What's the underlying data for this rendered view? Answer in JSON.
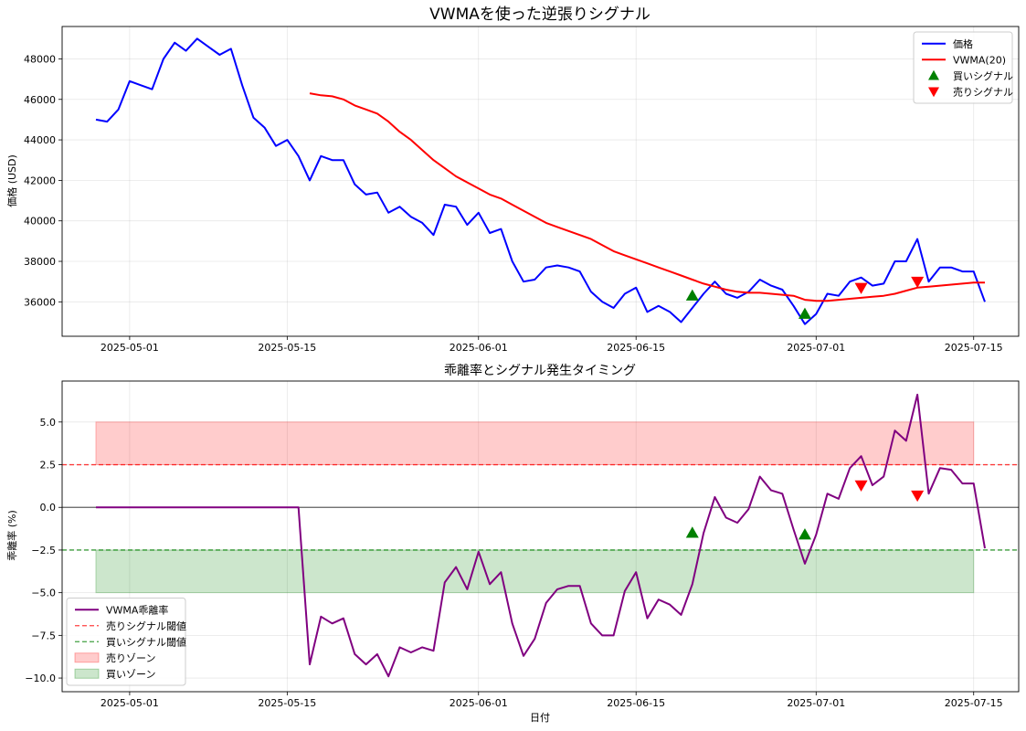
{
  "chart_data": [
    {
      "type": "line",
      "title": "VWMAを使った逆張りシグナル",
      "xlabel": "",
      "ylabel": "価格 (USD)",
      "x_start": "2025-04-28",
      "x_end": "2025-07-15",
      "xlim": [
        "2025-04-25",
        "2025-07-19"
      ],
      "ylim": [
        34300,
        49600
      ],
      "xticks": [
        "2025-05-01",
        "2025-05-15",
        "2025-06-01",
        "2025-06-15",
        "2025-07-01",
        "2025-07-15"
      ],
      "yticks": [
        36000,
        38000,
        40000,
        42000,
        44000,
        46000,
        48000
      ],
      "grid": true,
      "legend_position": "top-right",
      "series": [
        {
          "name": "価格",
          "kind": "line",
          "color": "#0000ff",
          "values": [
            45000,
            44900,
            45500,
            46900,
            46700,
            46500,
            48000,
            48800,
            48400,
            49000,
            48600,
            48200,
            48500,
            46700,
            45100,
            44600,
            43700,
            44000,
            43200,
            42000,
            43200,
            43000,
            43000,
            41800,
            41300,
            41400,
            40400,
            40700,
            40200,
            39900,
            39300,
            40800,
            40700,
            39800,
            40400,
            39400,
            39600,
            38000,
            37000,
            37100,
            37700,
            37800,
            37700,
            37500,
            36500,
            36000,
            35700,
            36400,
            36700,
            35500,
            35800,
            35500,
            35000,
            35700,
            36400,
            37000,
            36400,
            36200,
            36500,
            37100,
            36800,
            36600,
            35800,
            34900,
            35400,
            36400,
            36300,
            37000,
            37200,
            36800,
            36900,
            38000,
            38000,
            39100,
            37000,
            37700,
            37700,
            37500,
            37500,
            36000
          ]
        },
        {
          "name": "VWMA(20)",
          "kind": "line",
          "color": "#ff0000",
          "values": [
            null,
            null,
            null,
            null,
            null,
            null,
            null,
            null,
            null,
            null,
            null,
            null,
            null,
            null,
            null,
            null,
            null,
            null,
            null,
            46300,
            46200,
            46150,
            46000,
            45700,
            45500,
            45300,
            44900,
            44400,
            44000,
            43500,
            43000,
            42600,
            42200,
            41900,
            41600,
            41300,
            41100,
            40800,
            40500,
            40200,
            39900,
            39700,
            39500,
            39300,
            39100,
            38800,
            38500,
            38300,
            38100,
            37900,
            37700,
            37500,
            37300,
            37100,
            36900,
            36750,
            36600,
            36500,
            36450,
            36450,
            36400,
            36350,
            36300,
            36100,
            36050,
            36050,
            36100,
            36150,
            36200,
            36250,
            36300,
            36400,
            36550,
            36700,
            36750,
            36800,
            36850,
            36900,
            36950,
            36950
          ]
        },
        {
          "name": "買いシグナル",
          "kind": "marker",
          "marker": "triangle-up",
          "color": "#008000",
          "points": [
            [
              "2025-06-20",
              36300
            ],
            [
              "2025-06-30",
              35400
            ]
          ]
        },
        {
          "name": "売りシグナル",
          "kind": "marker",
          "marker": "triangle-down",
          "color": "#ff0000",
          "points": [
            [
              "2025-07-05",
              36700
            ],
            [
              "2025-07-10",
              37000
            ]
          ]
        }
      ]
    },
    {
      "type": "line",
      "title": "乖離率とシグナル発生タイミング",
      "xlabel": "日付",
      "ylabel": "乖離率 (%)",
      "x_start": "2025-04-28",
      "x_end": "2025-07-15",
      "xlim": [
        "2025-04-25",
        "2025-07-19"
      ],
      "ylim": [
        -10.8,
        7.4
      ],
      "xticks": [
        "2025-05-01",
        "2025-05-15",
        "2025-06-01",
        "2025-06-15",
        "2025-07-01",
        "2025-07-15"
      ],
      "yticks": [
        -10.0,
        -7.5,
        -5.0,
        -2.5,
        0.0,
        2.5,
        5.0
      ],
      "ytick_labels": [
        "−10.0",
        "−7.5",
        "−5.0",
        "−2.5",
        "0.0",
        "2.5",
        "5.0"
      ],
      "grid": true,
      "legend_position": "bottom-left",
      "zero_line": 0,
      "zones": [
        {
          "name": "売りゾーン",
          "from": 2.5,
          "to": 5.0,
          "color": "#ff0000",
          "alpha": 0.2
        },
        {
          "name": "買いゾーン",
          "from": -5.0,
          "to": -2.5,
          "color": "#008000",
          "alpha": 0.2
        }
      ],
      "thresholds": [
        {
          "name": "売りシグナル閾値",
          "value": 2.5,
          "color": "#ff0000"
        },
        {
          "name": "買いシグナル閾値",
          "value": -2.5,
          "color": "#008000"
        }
      ],
      "series": [
        {
          "name": "VWMA乖離率",
          "kind": "line",
          "color": "#800080",
          "values": [
            0,
            0,
            0,
            0,
            0,
            0,
            0,
            0,
            0,
            0,
            0,
            0,
            0,
            0,
            0,
            0,
            0,
            0,
            0,
            -9.2,
            -6.4,
            -6.8,
            -6.5,
            -8.6,
            -9.2,
            -8.6,
            -9.9,
            -8.2,
            -8.5,
            -8.2,
            -8.4,
            -4.4,
            -3.5,
            -4.8,
            -2.6,
            -4.5,
            -3.8,
            -6.8,
            -8.7,
            -7.7,
            -5.6,
            -4.8,
            -4.6,
            -4.6,
            -6.8,
            -7.5,
            -7.5,
            -4.9,
            -3.8,
            -6.5,
            -5.4,
            -5.7,
            -6.3,
            -4.5,
            -1.5,
            0.6,
            -0.6,
            -0.9,
            -0.1,
            1.8,
            1.0,
            0.8,
            -1.3,
            -3.3,
            -1.6,
            0.8,
            0.5,
            2.3,
            3.0,
            1.3,
            1.8,
            4.5,
            3.9,
            6.6,
            0.8,
            2.3,
            2.2,
            1.4,
            1.4,
            -2.4
          ]
        },
        {
          "name": "買いシグナル",
          "kind": "marker",
          "marker": "triangle-up",
          "color": "#008000",
          "points": [
            [
              "2025-06-20",
              -1.5
            ],
            [
              "2025-06-30",
              -1.6
            ]
          ]
        },
        {
          "name": "売りシグナル",
          "kind": "marker",
          "marker": "triangle-down",
          "color": "#ff0000",
          "points": [
            [
              "2025-07-05",
              1.3
            ],
            [
              "2025-07-10",
              0.7
            ]
          ]
        }
      ]
    }
  ]
}
